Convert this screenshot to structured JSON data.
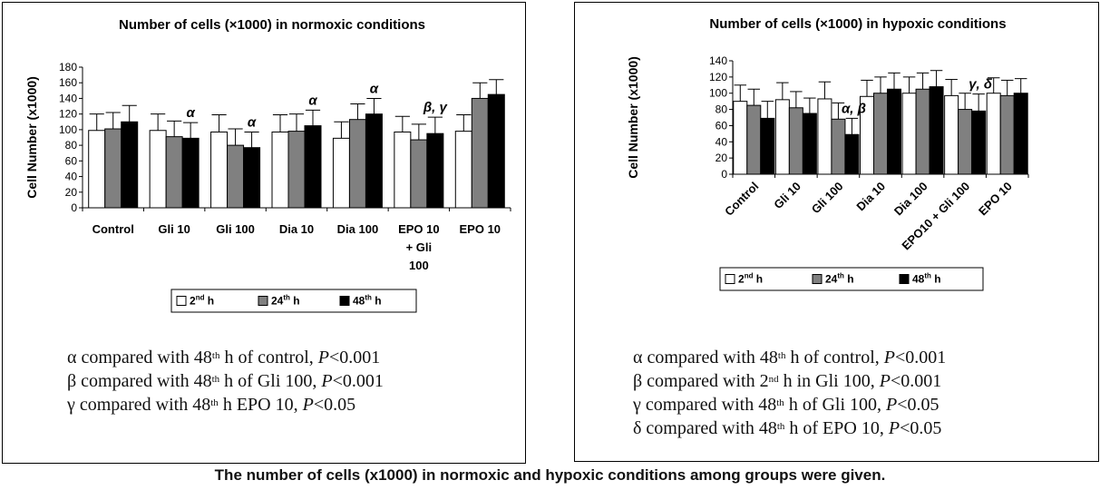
{
  "caption": "The number of cells (x1000) in normoxic and hypoxic conditions among groups were given.",
  "chart_data": [
    {
      "type": "bar",
      "title": "Number of cells (×1000) in normoxic conditions",
      "xlabel": "",
      "ylabel": "Cell Number (x1000)",
      "ylim": [
        0,
        180
      ],
      "yticks": [
        "0",
        "20",
        "40",
        "60",
        "80",
        "100",
        "120",
        "140",
        "160",
        "180"
      ],
      "categories": [
        "Control",
        "Gli 10",
        "Gli 100",
        "Dia 10",
        "Dia 100",
        "EPO 10 + Gli 100",
        "EPO 10"
      ],
      "category_lines": [
        [
          "Control"
        ],
        [
          "Gli 10"
        ],
        [
          "Gli 100"
        ],
        [
          "Dia 10"
        ],
        [
          "Dia 100"
        ],
        [
          "EPO 10",
          "+ Gli",
          "100"
        ],
        [
          "EPO 10"
        ]
      ],
      "series": [
        {
          "name": "2nd h",
          "color": "#ffffff",
          "values": [
            99,
            99,
            97,
            97,
            89,
            97,
            98
          ],
          "errors": [
            21,
            21,
            22,
            22,
            21,
            20,
            21
          ]
        },
        {
          "name": "24th h",
          "color": "#808080",
          "values": [
            101,
            91,
            80,
            98,
            113,
            87,
            140
          ],
          "errors": [
            21,
            20,
            21,
            22,
            20,
            20,
            20
          ]
        },
        {
          "name": "48th h",
          "color": "#000000",
          "values": [
            110,
            89,
            77,
            105,
            120,
            95,
            145
          ],
          "errors": [
            21,
            20,
            20,
            20,
            20,
            21,
            19
          ]
        }
      ],
      "annotations": [
        {
          "text": "α",
          "category": 1,
          "series": 2
        },
        {
          "text": "α",
          "category": 2,
          "series": 2
        },
        {
          "text": "α",
          "category": 3,
          "series": 2
        },
        {
          "text": "α",
          "category": 4,
          "series": 2
        },
        {
          "text": "β, γ",
          "category": 5,
          "series": 2
        }
      ],
      "legend": [
        {
          "label": "2",
          "sup": "nd",
          "suffix": " h"
        },
        {
          "label": "24",
          "sup": "th",
          "suffix": " h"
        },
        {
          "label": "48",
          "sup": "th",
          "suffix": " h"
        }
      ],
      "legend_position": "bottom",
      "notes": [
        {
          "pre": "α compared with 48",
          "sup": "th",
          "post": " h of control, ",
          "p": "P",
          "val": "<0.001"
        },
        {
          "pre": "β compared with 48",
          "sup": "th",
          "post": " h of Gli 100, ",
          "p": "P",
          "val": "<0.001"
        },
        {
          "pre": "γ compared with 48",
          "sup": "th",
          "post": " h EPO 10, ",
          "p": "P",
          "val": "<0.05"
        }
      ]
    },
    {
      "type": "bar",
      "title": "Number of cells (×1000) in hypoxic conditions",
      "xlabel": "",
      "ylabel": "Cell Number (x1000)",
      "ylim": [
        0,
        140
      ],
      "yticks": [
        "0",
        "20",
        "40",
        "60",
        "80",
        "100",
        "120",
        "140"
      ],
      "categories": [
        "Control",
        "Gli 10",
        "Gli 100",
        "Dia 10",
        "Dia 100",
        "EPO10 + Gli 100",
        "EPO 10"
      ],
      "series": [
        {
          "name": "2nd h",
          "color": "#ffffff",
          "values": [
            90,
            92,
            93,
            96,
            100,
            97,
            100
          ],
          "errors": [
            20,
            21,
            21,
            20,
            20,
            20,
            19
          ]
        },
        {
          "name": "24th h",
          "color": "#808080",
          "values": [
            85,
            82,
            68,
            100,
            105,
            80,
            97
          ],
          "errors": [
            20,
            20,
            20,
            20,
            20,
            20,
            19
          ]
        },
        {
          "name": "48th h",
          "color": "#000000",
          "values": [
            69,
            75,
            49,
            105,
            108,
            78,
            100
          ],
          "errors": [
            21,
            19,
            20,
            20,
            20,
            21,
            18
          ]
        }
      ],
      "annotations": [
        {
          "text": "α, β",
          "category": 2,
          "series": 2
        },
        {
          "text": "γ, δ",
          "category": 5,
          "series": 2
        }
      ],
      "legend": [
        {
          "label": "2",
          "sup": "nd",
          "suffix": " h"
        },
        {
          "label": "24",
          "sup": "th",
          "suffix": " h"
        },
        {
          "label": "48",
          "sup": "th",
          "suffix": " h"
        }
      ],
      "legend_position": "bottom",
      "notes": [
        {
          "pre": "α compared with 48",
          "sup": "th",
          "post": " h of control, ",
          "p": "P",
          "val": "<0.001"
        },
        {
          "pre": "β compared with 2",
          "sup": "nd",
          "post": " h in Gli 100,  ",
          "p": "P",
          "val": "<0.001"
        },
        {
          "pre": "γ compared with  48",
          "sup": "th",
          "post": " h of Gli 100, ",
          "p": "P",
          "val": "<0.05"
        },
        {
          "pre": "δ compared with 48",
          "sup": "th",
          "post": " h of EPO 10, ",
          "p": "P",
          "val": "<0.05"
        }
      ]
    }
  ]
}
